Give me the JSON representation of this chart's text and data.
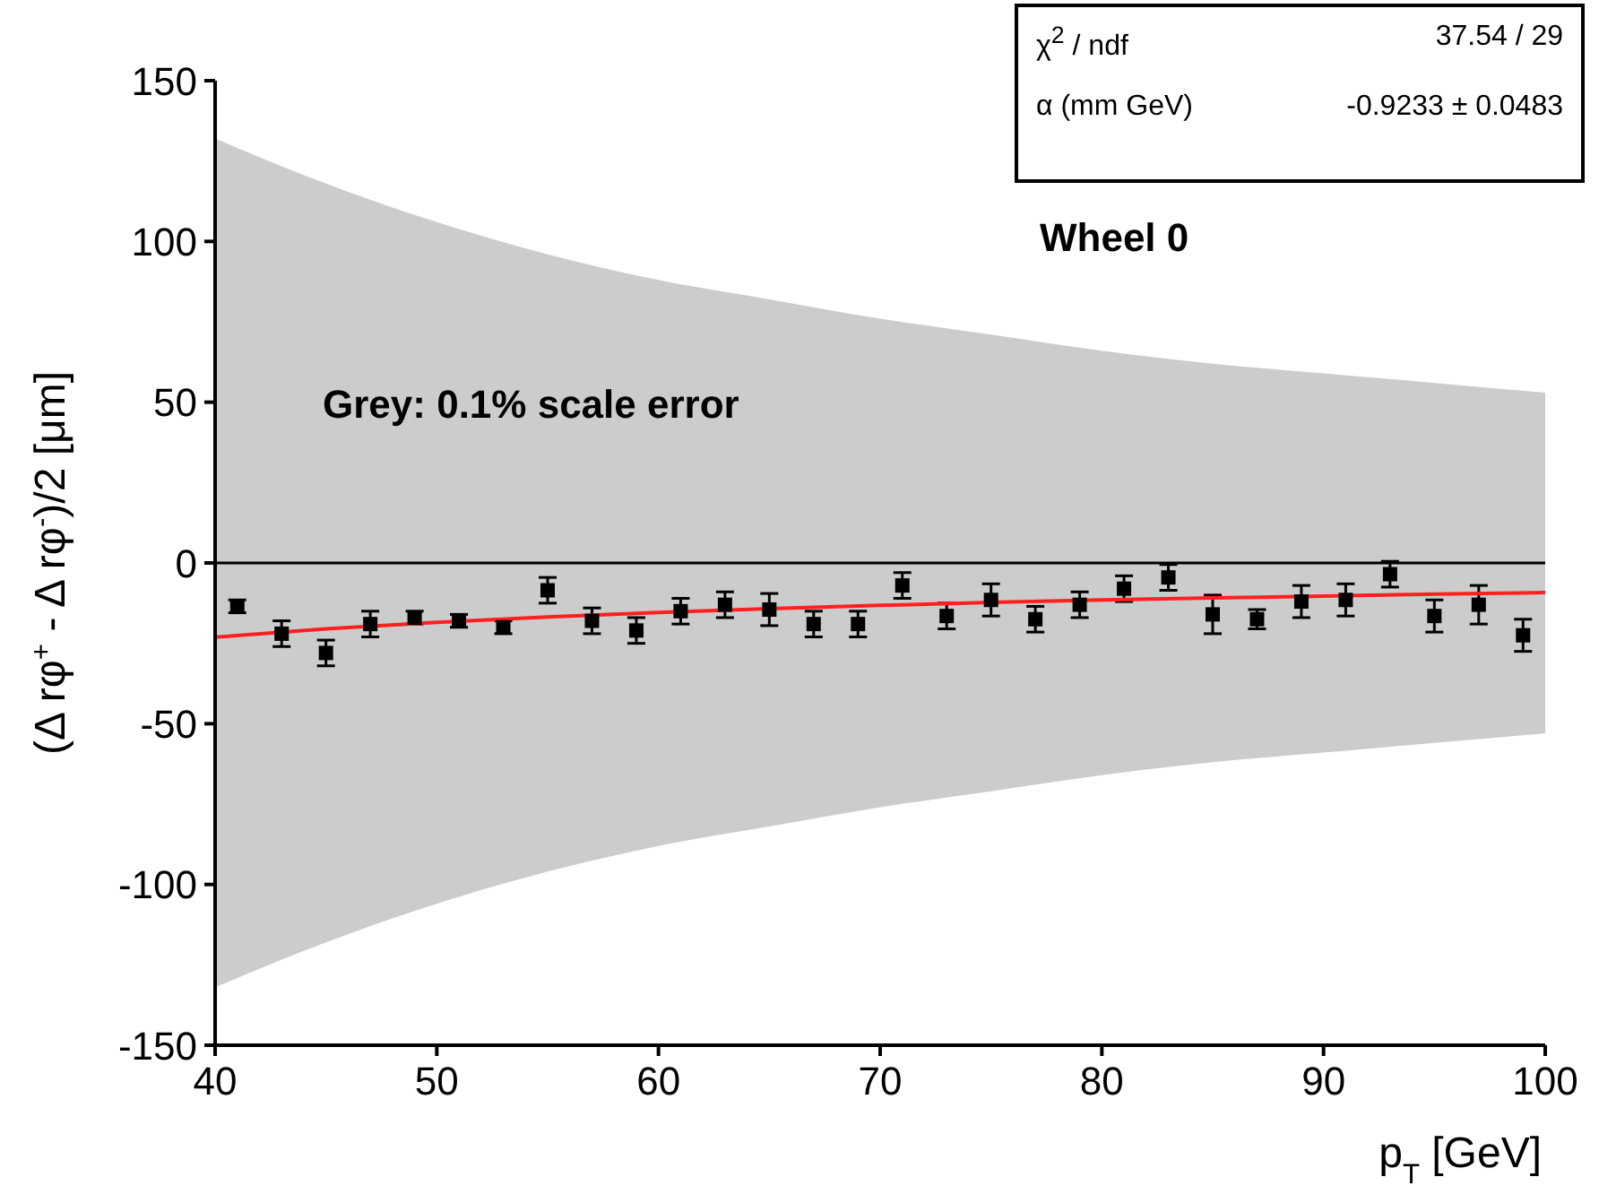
{
  "chart_data": {
    "type": "scatter",
    "xlabel": "p$_{T}$ [GeV]",
    "ylabel": "(Δ rφ$^{+}$ - Δ rφ$^{-}$)/2 [μm]",
    "xlim": [
      40,
      100
    ],
    "xticks": [
      40,
      50,
      60,
      70,
      80,
      90,
      100
    ],
    "ylim": [
      -150,
      150
    ],
    "yticks": [
      -150,
      -100,
      -50,
      0,
      50,
      100,
      150
    ],
    "grid": false,
    "legend": false,
    "series": [
      {
        "type": "line",
        "color": "#000000",
        "x": [
          40,
          45,
          50,
          55,
          60,
          65,
          70,
          75,
          80,
          85,
          90,
          95,
          100
        ],
        "values": [
          0,
          0,
          0,
          0,
          0,
          0,
          0,
          0,
          0,
          0,
          0,
          0,
          0
        ],
        "lower": [
          -132,
          -118,
          -106,
          -96,
          -88,
          -82,
          -76,
          -71,
          -66,
          -62,
          -59,
          -56,
          -53
        ],
        "upper": [
          132,
          118,
          106,
          96,
          88,
          82,
          76,
          71,
          66,
          62,
          59,
          56,
          53
        ]
      },
      {
        "color": "#000000",
        "marker": "square",
        "x": [
          41,
          43,
          45,
          47,
          49,
          51,
          53,
          55,
          57,
          59,
          61,
          63,
          65,
          67,
          69,
          71,
          73,
          75,
          77,
          79,
          81,
          83,
          85,
          87,
          89,
          91,
          93,
          95,
          97,
          99
        ],
        "values": [
          -13.5,
          -22,
          -28,
          -19,
          -17,
          -18,
          -20,
          -8.5,
          -18,
          -21,
          -15,
          -13,
          -14.5,
          -19,
          -19,
          -7,
          -16.5,
          -11.5,
          -17.5,
          -13,
          -8,
          -4.5,
          -16,
          -17.5,
          -12,
          -11.5,
          -3.5,
          -16.5,
          -13,
          -22.5
        ],
        "errors": [
          2,
          4,
          4,
          4,
          2,
          2,
          2,
          4,
          4,
          4,
          4,
          4,
          5,
          4,
          4,
          4,
          4,
          5,
          4,
          4,
          4,
          4,
          6,
          3,
          5,
          5,
          4,
          5,
          6,
          5
        ]
      },
      {
        "type": "line",
        "color": "#ff2020",
        "x": [
          40,
          45,
          50,
          55,
          60,
          65,
          70,
          75,
          80,
          85,
          90,
          95,
          100
        ],
        "values": [
          -23.1,
          -20.5,
          -18.5,
          -16.8,
          -15.4,
          -14.2,
          -13.2,
          -12.3,
          -11.5,
          -10.9,
          -10.3,
          -9.7,
          -9.2
        ]
      }
    ],
    "annotations": [
      "Wheel 0",
      "Grey: 0.1% scale error",
      "χ$^{2}$ / ndf",
      "37.54 / 29",
      "α (mm GeV)",
      "-0.9233 ± 0.0483"
    ]
  }
}
